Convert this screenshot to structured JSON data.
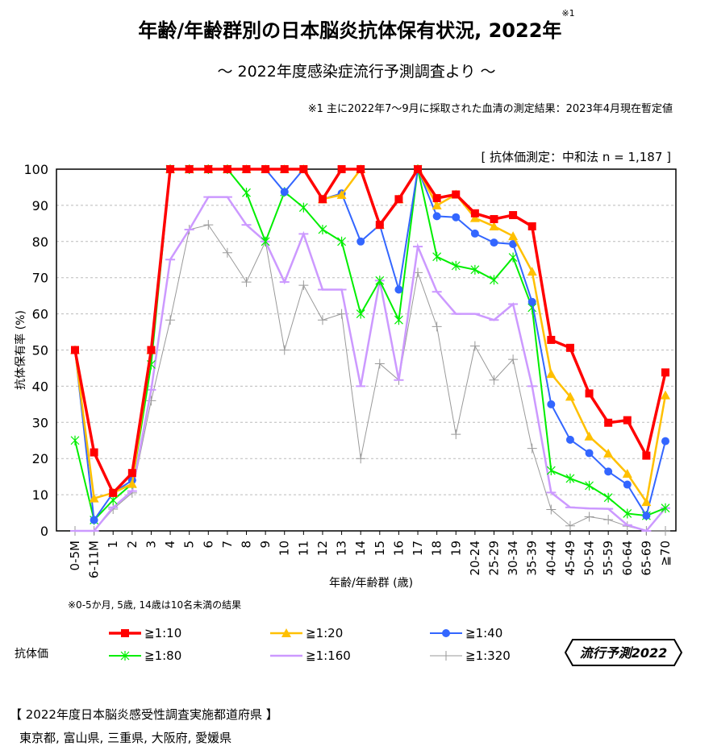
{
  "header": {
    "title": "年齢/年齢群別の日本脳炎抗体保有状況, 2022年",
    "title_note": "※1",
    "subtitle": "～ 2022年度感染症流行予測調査より ～",
    "note1": "※1  主に2022年7～9月に採取された血清の測定結果：2023年4月現在暫定値",
    "method": "[ 抗体価測定：中和法 n = 1,187 ]"
  },
  "footnote": "※0-5か月, 5歳, 14歳は10名未満の結果",
  "legend": {
    "title": "抗体価"
  },
  "badge": "流行予測2022",
  "prefectures": {
    "title": "【 2022年度日本脳炎感受性調査実施都道府県 】",
    "list": "東京都,  富山県,  三重県,  大阪府,  愛媛県"
  },
  "chart_data": {
    "type": "line",
    "xlabel": "年齢/年齢群 (歳)",
    "ylabel": "抗体保有率 (%)",
    "ylim": [
      0,
      100
    ],
    "yticks": [
      0,
      10,
      20,
      30,
      40,
      50,
      60,
      70,
      80,
      90,
      100
    ],
    "grid": "horizontal dashed",
    "legend_position": "bottom",
    "categories": [
      "0-5M",
      "6-11M",
      "1",
      "2",
      "3",
      "4",
      "5",
      "6",
      "7",
      "8",
      "9",
      "10",
      "11",
      "12",
      "13",
      "14",
      "15",
      "16",
      "17",
      "18",
      "19",
      "20-24",
      "25-29",
      "30-34",
      "35-39",
      "40-44",
      "45-49",
      "50-54",
      "55-59",
      "60-64",
      "65-69",
      "≧70"
    ],
    "series": [
      {
        "name": "≧1:10",
        "color": "#ff0000",
        "marker": "square",
        "values": [
          50,
          21.7,
          10.5,
          16,
          50,
          100,
          100,
          100,
          100,
          100,
          100,
          100,
          100,
          91.7,
          100,
          100,
          84.6,
          91.7,
          100,
          92,
          93,
          87.8,
          86.2,
          87.3,
          84.2,
          52.8,
          50.6,
          38,
          29.9,
          30.6,
          20.8,
          43.8
        ]
      },
      {
        "name": "≧1:20",
        "color": "#ffc000",
        "marker": "triangle",
        "values": [
          50,
          9,
          10.5,
          13,
          50,
          100,
          100,
          100,
          100,
          100,
          100,
          100,
          100,
          91.7,
          92.9,
          100,
          84.6,
          91.7,
          100,
          90,
          93,
          86.5,
          84.2,
          81.5,
          71.7,
          43.4,
          37.1,
          26.1,
          21.4,
          15.8,
          8,
          37.5
        ]
      },
      {
        "name": "≧1:40",
        "color": "#3366ff",
        "marker": "circle",
        "values": [
          50,
          3,
          10.5,
          14,
          50,
          100,
          100,
          100,
          100,
          100,
          100,
          93.7,
          100,
          91.7,
          93.3,
          80,
          84.6,
          66.7,
          100,
          87,
          86.7,
          82.2,
          79.7,
          79.3,
          63.3,
          35,
          25.2,
          21.5,
          16.4,
          12.8,
          4.2,
          24.8
        ]
      },
      {
        "name": "≧1:80",
        "color": "#00ee00",
        "marker": "asterisk",
        "values": [
          25,
          3,
          8.5,
          13,
          46,
          100,
          100,
          100,
          100,
          93.5,
          80,
          93.7,
          89.4,
          83.3,
          80,
          60,
          69.2,
          58.3,
          100,
          75.8,
          73.3,
          72.2,
          69.4,
          75.6,
          61.7,
          16.7,
          14.5,
          12.5,
          9.2,
          4.8,
          4.2,
          6.3
        ]
      },
      {
        "name": "≧1:160",
        "color": "#cc99ff",
        "marker": "dash",
        "values": [
          0,
          0,
          6.5,
          11,
          39,
          75,
          83.3,
          92.3,
          92.3,
          84.6,
          80,
          68.8,
          82.1,
          66.7,
          66.7,
          40,
          69.2,
          41.7,
          78.6,
          66.1,
          60,
          60,
          58.3,
          62.7,
          40,
          10.6,
          6.5,
          6.2,
          6.1,
          1.6,
          0,
          6.3
        ]
      },
      {
        "name": "≧1:320",
        "color": "#999999",
        "marker": "plus",
        "values": [
          0,
          0,
          6,
          10.5,
          36,
          58.3,
          83.3,
          84.6,
          76.9,
          68.8,
          80,
          50,
          67.9,
          58.3,
          60,
          20,
          46.2,
          41.7,
          71.4,
          56.5,
          26.7,
          51.1,
          41.7,
          47.4,
          22.8,
          5.9,
          1.4,
          3.9,
          3.1,
          1.3,
          0,
          0
        ]
      }
    ]
  }
}
